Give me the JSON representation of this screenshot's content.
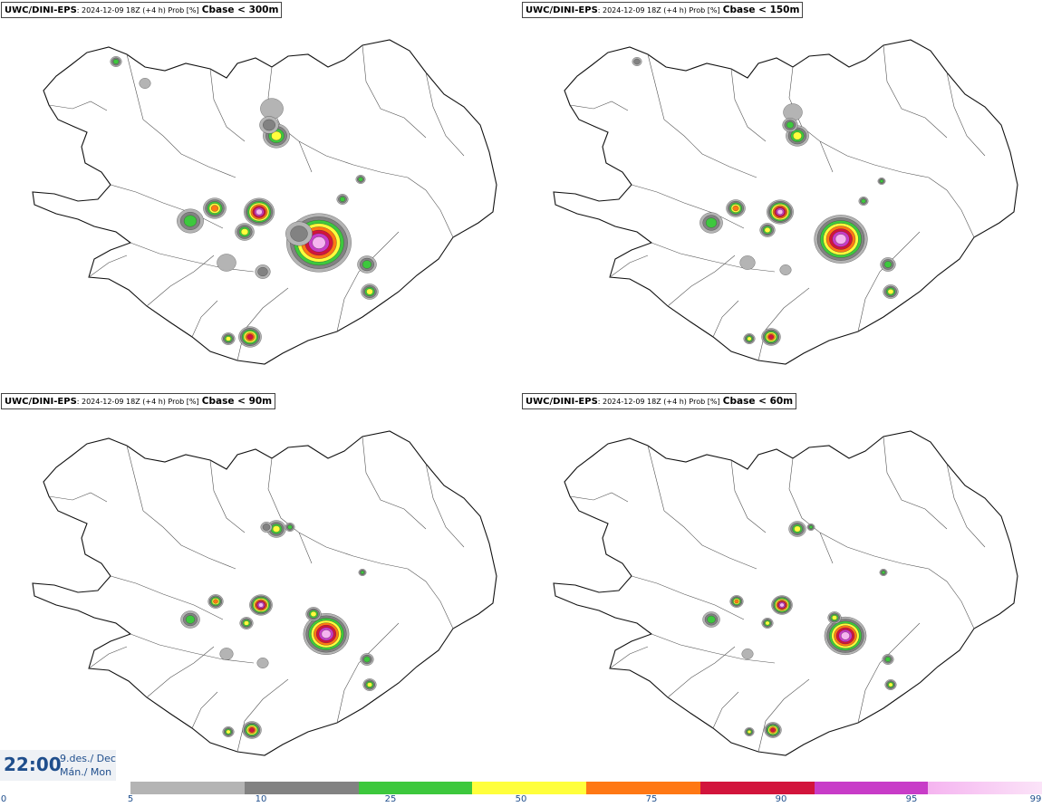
{
  "panels": [
    {
      "model": "UWC/DINI-EPS",
      "meta": ": 2024-12-09 18Z (+4 h) Prob [%]",
      "threshold": "Cbase < 300m"
    },
    {
      "model": "UWC/DINI-EPS",
      "meta": ": 2024-12-09 18Z (+4 h) Prob [%]",
      "threshold": "Cbase < 150m"
    },
    {
      "model": "UWC/DINI-EPS",
      "meta": ": 2024-12-09 18Z (+4 h) Prob [%]",
      "threshold": "Cbase < 90m"
    },
    {
      "model": "UWC/DINI-EPS",
      "meta": ": 2024-12-09 18Z (+4 h) Prob [%]",
      "threshold": "Cbase < 60m"
    }
  ],
  "valid_time": {
    "time": "22:00",
    "date": "9.des./ Dec",
    "day": "Mán./ Mon"
  },
  "legend": {
    "ticks": [
      "0",
      "5",
      "10",
      "25",
      "50",
      "75",
      "90",
      "95",
      "99"
    ],
    "colors": [
      "#b4b4b4",
      "#828282",
      "#3dc83d",
      "#ffff3c",
      "#ff7814",
      "#d2143c",
      "#c83cc8",
      "#f5b4f0"
    ]
  },
  "map": {
    "region": "Iceland",
    "coast_color": "#000000",
    "land_color": "#ffffff"
  }
}
